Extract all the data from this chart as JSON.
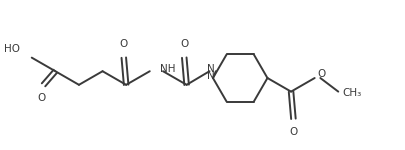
{
  "bg_color": "#ffffff",
  "line_color": "#3a3a3a",
  "text_color": "#3a3a3a",
  "line_width": 1.4,
  "font_size": 7.5,
  "figsize": [
    4.05,
    1.5
  ],
  "dpi": 100,
  "xlim": [
    0,
    10.5
  ],
  "ylim": [
    0,
    3.9
  ]
}
